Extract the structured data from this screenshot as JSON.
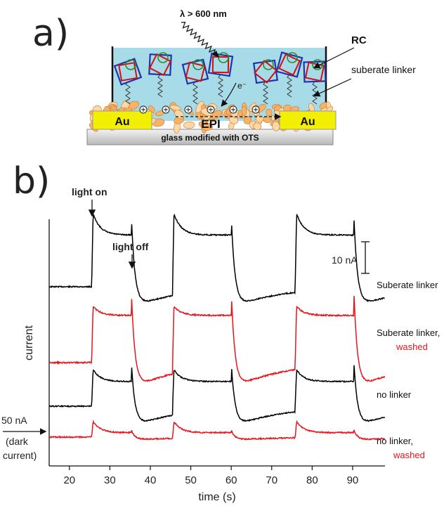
{
  "panel_a": {
    "label": "a)",
    "wavelength": "λ > 600 nm",
    "rc_label": "RC",
    "linker_label": "suberate linker",
    "electron": "e⁻",
    "au_left": "Au",
    "au_right": "Au",
    "epi": "EPI",
    "substrate": "glass modified with OTS",
    "colors": {
      "solution": "#a8dbe8",
      "gold": "#f2f000",
      "epi": "#f2a85a"
    }
  },
  "panel_b": {
    "label": "b)",
    "light_on": "light on",
    "light_off": "light off",
    "scale_bar": "10 nA",
    "dark_current_1": "50 nA",
    "dark_current_2": "(dark",
    "dark_current_3": "current)"
  },
  "chart_data": {
    "type": "line",
    "xlabel": "time (s)",
    "ylabel": "current",
    "xlim": [
      15,
      98
    ],
    "xticks": [
      20,
      30,
      40,
      50,
      60,
      70,
      80,
      90
    ],
    "light_on_times": [
      25.5,
      45.5,
      75.8
    ],
    "light_off_times": [
      35.3,
      60.0,
      90.3
    ],
    "series": [
      {
        "name": "Suberate linker",
        "name2": "",
        "color": "#000000",
        "baseline": 408,
        "rise": 104,
        "plateau": 70,
        "tail": 92,
        "drop": 30,
        "noise": 0.8
      },
      {
        "name": "Suberate linker,",
        "name2": "washed",
        "color": "#e8141b",
        "baseline": 516,
        "rise": 80,
        "plateau": 64,
        "tail": 84,
        "drop": 38,
        "noise": 1.0
      },
      {
        "name": "no linker",
        "name2": "",
        "color": "#000000",
        "baseline": 578,
        "rise": 52,
        "plateau": 40,
        "tail": 44,
        "drop": 30,
        "noise": 0.8
      },
      {
        "name": "no linker,",
        "name2": "washed",
        "color": "#e8141b",
        "baseline": 622,
        "rise": 22,
        "plateau": 8,
        "tail": 8,
        "drop": 4,
        "noise": 0.9
      }
    ]
  }
}
